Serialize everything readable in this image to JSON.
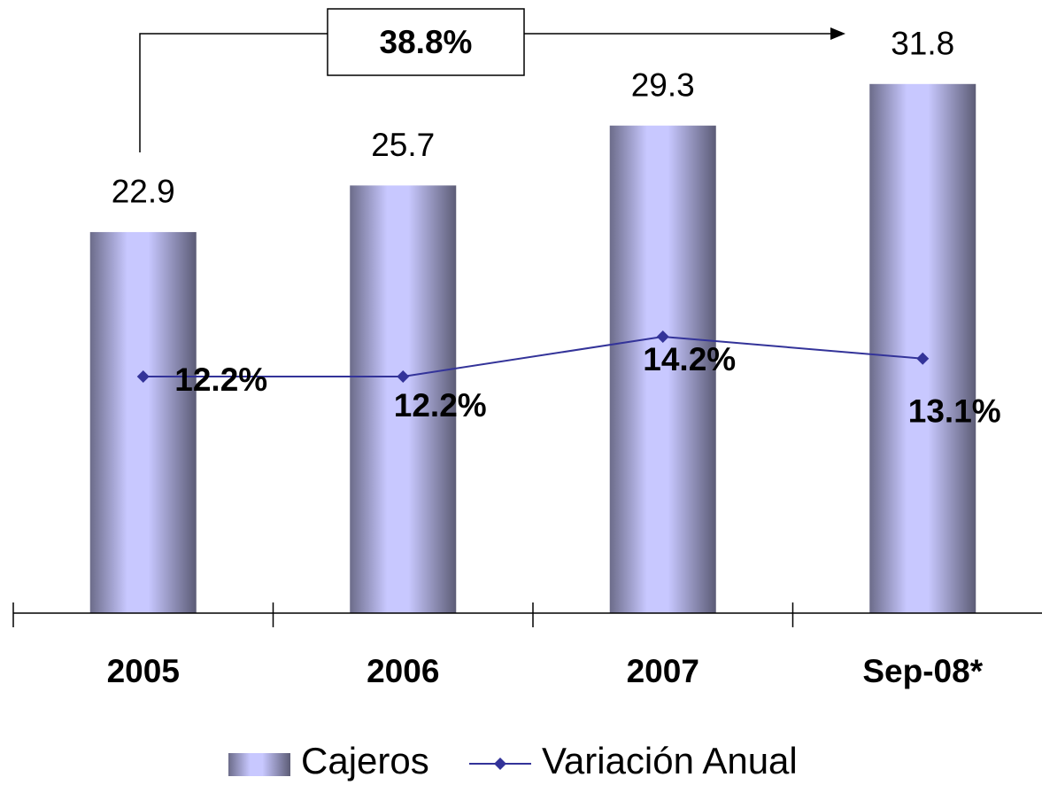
{
  "chart_data": {
    "type": "bar-line",
    "annotation": "38.8%",
    "categories": [
      "2005",
      "2006",
      "2007",
      "Sep-08*"
    ],
    "series": [
      {
        "name": "Cajeros",
        "type": "bar",
        "color": "#c8c8ff",
        "values": [
          22.9,
          25.7,
          29.3,
          31.8
        ]
      },
      {
        "name": "Variación Anual",
        "type": "line",
        "axis": "y2",
        "color": "#333399",
        "values": [
          12.2,
          12.2,
          14.2,
          13.1
        ],
        "value_labels": [
          "12.2%",
          "12.2%",
          "14.2%",
          "13.1%"
        ]
      }
    ]
  }
}
